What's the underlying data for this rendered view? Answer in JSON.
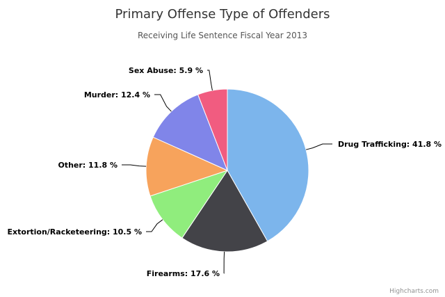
{
  "chart_data": {
    "type": "pie",
    "title": "Primary Offense Type of Offenders",
    "subtitle": "Receiving Life Sentence Fiscal Year 2013",
    "credits": "Highcharts.com",
    "unit_suffix": " %",
    "slices": [
      {
        "name": "Drug Trafficking",
        "value": 41.8,
        "color": "#7cb5ec"
      },
      {
        "name": "Firearms",
        "value": 17.6,
        "color": "#434348"
      },
      {
        "name": "Extortion/Racketeering",
        "value": 10.5,
        "color": "#90ed7d"
      },
      {
        "name": "Other",
        "value": 11.8,
        "color": "#f7a35c"
      },
      {
        "name": "Murder",
        "value": 12.4,
        "color": "#8085e9"
      },
      {
        "name": "Sex Abuse",
        "value": 5.9,
        "color": "#f15c80"
      }
    ]
  }
}
